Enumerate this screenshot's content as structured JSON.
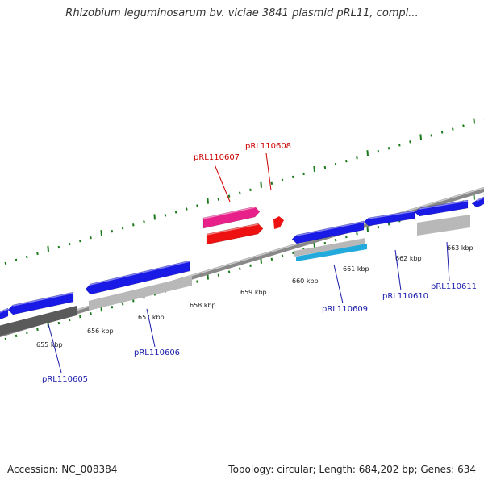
{
  "title": "Rhizobium leguminosarum bv. viciae 3841 plasmid pRL11, compl...",
  "footer": {
    "accession": "Accession: NC_008384",
    "summary": "Topology: circular; Length: 684,202 bp; Genes: 634"
  },
  "colors": {
    "forward_gene": "#1a1ae6",
    "gray_feature": "#b8b8b8",
    "dark_gray_feature": "#5a5a5a",
    "cyan_feature": "#22aadd",
    "pink_gene": "#e8208a",
    "red_gene": "#ee1111",
    "ruler_ticks": "#1a7a1a",
    "backbone": "#888888",
    "label_blue": "#1a1aaa",
    "label_red": "#cc0000"
  },
  "ruler": {
    "unit": "kbp",
    "ticks": [
      {
        "pos": 655,
        "label": "655 kbp"
      },
      {
        "pos": 656,
        "label": "656 kbp"
      },
      {
        "pos": 657,
        "label": "657 kbp"
      },
      {
        "pos": 658,
        "label": "658 kbp"
      },
      {
        "pos": 659,
        "label": "659 kbp"
      },
      {
        "pos": 660,
        "label": "660 kbp"
      },
      {
        "pos": 661,
        "label": "661 kbp"
      },
      {
        "pos": 662,
        "label": "662 kbp"
      },
      {
        "pos": 663,
        "label": "663 kbp"
      }
    ]
  },
  "genes": [
    {
      "label": "pRL110605",
      "color": "label_blue"
    },
    {
      "label": "pRL110606",
      "color": "label_blue"
    },
    {
      "label": "pRL110607",
      "color": "label_red"
    },
    {
      "label": "pRL110608",
      "color": "label_red"
    },
    {
      "label": "pRL110609",
      "color": "label_blue"
    },
    {
      "label": "pRL110610",
      "color": "label_blue"
    },
    {
      "label": "pRL110611",
      "color": "label_blue"
    }
  ]
}
